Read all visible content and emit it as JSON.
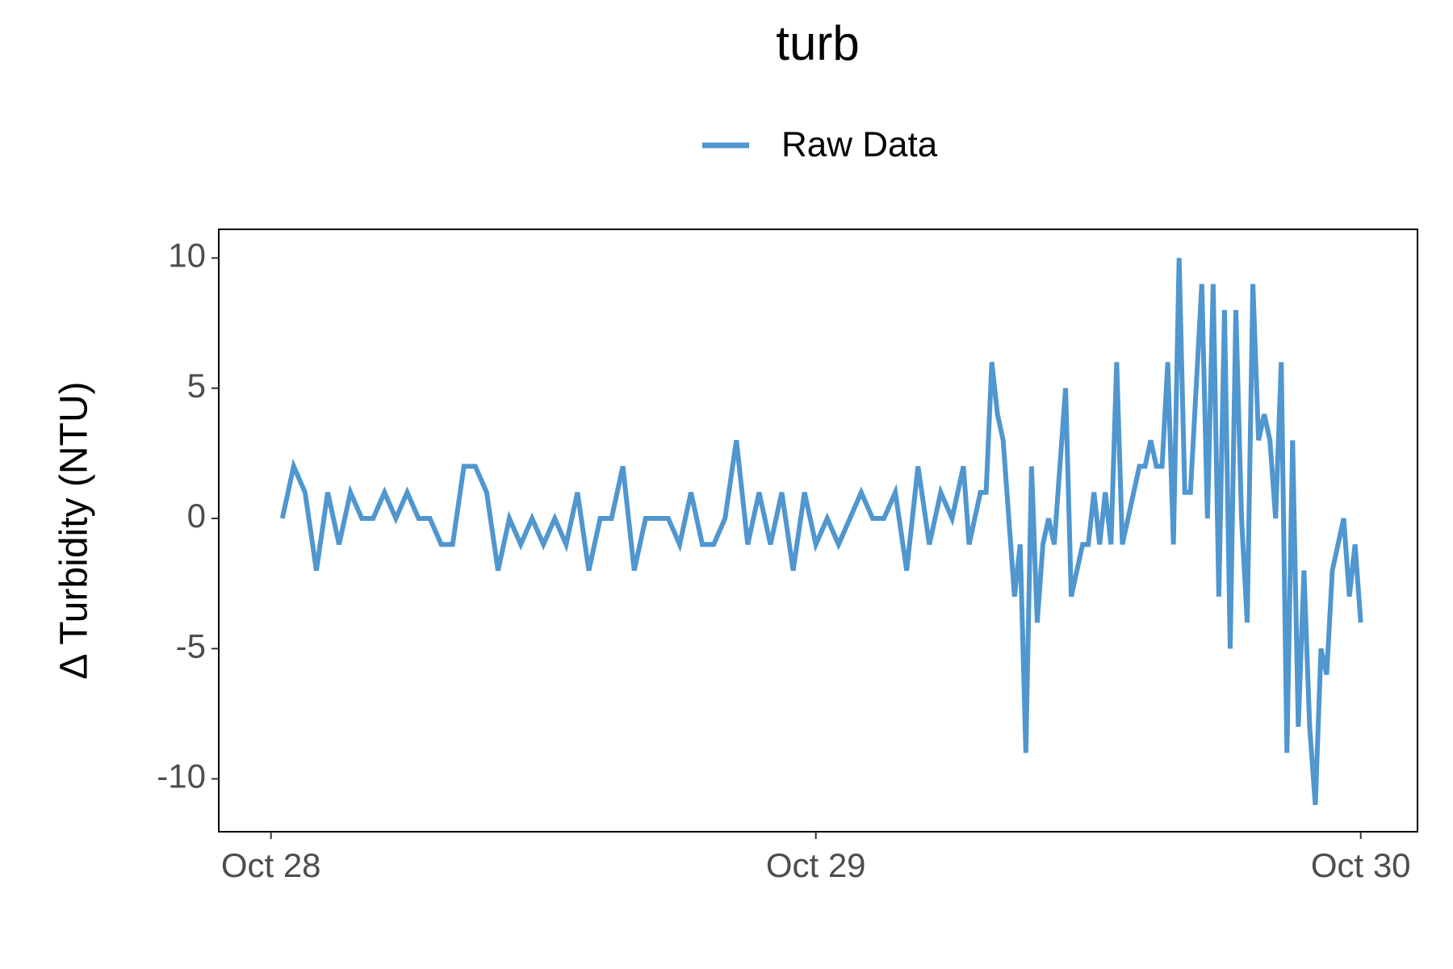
{
  "chart_data": {
    "type": "line",
    "title": "turb",
    "ylabel": "Δ Turbidity (NTU)",
    "x": [
      0.5,
      1,
      1.5,
      2,
      2.5,
      3,
      3.5,
      4,
      4.5,
      5,
      5.5,
      6,
      6.5,
      7,
      7.5,
      8,
      8.5,
      9,
      9.5,
      10,
      10.5,
      11,
      11.5,
      12,
      12.5,
      13,
      13.5,
      14,
      14.5,
      15,
      15.5,
      16,
      16.5,
      17,
      17.5,
      18,
      18.5,
      19,
      19.5,
      20,
      20.5,
      21,
      21.5,
      22,
      22.5,
      23,
      23.5,
      24,
      24.5,
      25,
      25.5,
      26,
      26.5,
      27,
      27.5,
      28,
      28.5,
      29,
      29.5,
      30,
      30.5,
      30.75,
      31,
      31.25,
      31.5,
      31.75,
      32,
      32.25,
      32.5,
      32.75,
      33,
      33.25,
      33.5,
      33.75,
      34,
      34.25,
      34.5,
      34.75,
      35,
      35.25,
      35.5,
      35.75,
      36,
      36.25,
      36.5,
      36.75,
      37,
      37.25,
      37.5,
      37.75,
      38,
      38.25,
      38.5,
      38.75,
      39,
      39.25,
      39.5,
      39.75,
      40,
      40.25,
      40.5,
      40.75,
      41,
      41.25,
      41.5,
      41.75,
      42,
      42.25,
      42.5,
      42.75,
      43,
      43.25,
      43.5,
      43.75,
      44,
      44.25,
      44.5,
      44.75,
      45,
      45.25,
      45.5,
      45.75,
      46,
      46.25,
      46.5,
      46.75,
      47,
      47.25,
      47.5,
      47.75,
      48
    ],
    "series": [
      {
        "name": "Raw Data",
        "color": "#5096cf",
        "values": [
          0,
          2,
          1,
          -2,
          1,
          -1,
          1,
          0,
          0,
          1,
          0,
          1,
          0,
          0,
          -1,
          -1,
          2,
          2,
          1,
          -2,
          0,
          -1,
          0,
          -1,
          0,
          -1,
          1,
          -2,
          0,
          0,
          2,
          -2,
          0,
          0,
          0,
          -1,
          1,
          -1,
          -1,
          0,
          3,
          -1,
          1,
          -1,
          1,
          -2,
          1,
          -1,
          0,
          -1,
          0,
          1,
          0,
          0,
          1,
          -2,
          2,
          -1,
          1,
          0,
          2,
          -1,
          0,
          1,
          1,
          6,
          4,
          3,
          0,
          -3,
          -1,
          -9,
          2,
          -4,
          -1,
          0,
          -1,
          2,
          5,
          -3,
          -2,
          -1,
          -1,
          1,
          -1,
          1,
          -1,
          6,
          -1,
          0,
          1,
          2,
          2,
          3,
          2,
          2,
          6,
          -1,
          10,
          1,
          1,
          5,
          9,
          0,
          9,
          -3,
          8,
          -5,
          8,
          0,
          -4,
          9,
          3,
          4,
          3,
          0,
          6,
          -9,
          3,
          -8,
          -2,
          -8,
          -11,
          -5,
          -6,
          -2,
          -1,
          0,
          -3,
          -1,
          -4
        ]
      }
    ],
    "xlim": [
      -2.3,
      50.5
    ],
    "xticks": [
      {
        "value": 0,
        "label": "Oct 28"
      },
      {
        "value": 24,
        "label": "Oct 29"
      },
      {
        "value": 48,
        "label": "Oct 30"
      }
    ],
    "ylim": [
      -12.03,
      11.1
    ],
    "yticks": [
      10,
      5,
      0,
      -5,
      -10
    ],
    "grid": false,
    "legend": "top"
  }
}
